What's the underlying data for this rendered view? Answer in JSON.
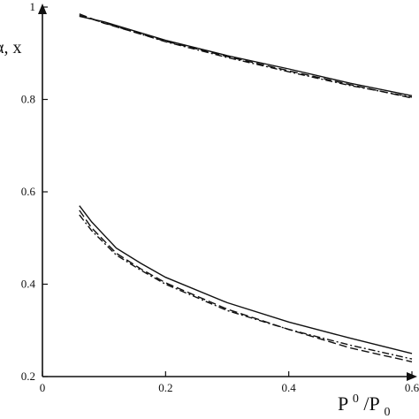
{
  "chart_data": {
    "type": "line",
    "title": "",
    "xlabel_main": "P",
    "xlabel_sup": "0",
    "xlabel_sep": "/P",
    "xlabel_sub": "0",
    "ylabel": "α, x",
    "xlim": [
      0,
      0.6
    ],
    "ylim": [
      0.2,
      1.0
    ],
    "x_ticks": [
      "0",
      "0.2",
      "0.4",
      "0.6"
    ],
    "y_ticks": [
      "0.2",
      "0.4",
      "0.6",
      "0.8",
      "1"
    ],
    "grid": false,
    "series": [
      {
        "style": "solid",
        "x": [
          0.06,
          0.1,
          0.2,
          0.3,
          0.4,
          0.5,
          0.6
        ],
        "y": [
          0.98,
          0.968,
          0.928,
          0.895,
          0.866,
          0.835,
          0.808
        ]
      },
      {
        "style": "dashed",
        "x": [
          0.06,
          0.1,
          0.2,
          0.3,
          0.4,
          0.5,
          0.6
        ],
        "y": [
          0.985,
          0.965,
          0.926,
          0.893,
          0.862,
          0.832,
          0.803
        ]
      },
      {
        "style": "dashdot",
        "x": [
          0.06,
          0.1,
          0.2,
          0.3,
          0.4,
          0.5,
          0.6
        ],
        "y": [
          0.982,
          0.966,
          0.925,
          0.891,
          0.86,
          0.83,
          0.805
        ]
      },
      {
        "style": "solid",
        "x": [
          0.06,
          0.08,
          0.12,
          0.16,
          0.2,
          0.3,
          0.4,
          0.5,
          0.6
        ],
        "y": [
          0.57,
          0.535,
          0.478,
          0.445,
          0.415,
          0.36,
          0.318,
          0.283,
          0.25
        ]
      },
      {
        "style": "dashed",
        "x": [
          0.06,
          0.08,
          0.12,
          0.16,
          0.2,
          0.3,
          0.4,
          0.5,
          0.6
        ],
        "y": [
          0.56,
          0.522,
          0.467,
          0.433,
          0.403,
          0.346,
          0.302,
          0.262,
          0.232
        ]
      },
      {
        "style": "dashdot",
        "x": [
          0.06,
          0.08,
          0.12,
          0.16,
          0.2,
          0.3,
          0.4,
          0.5,
          0.6
        ],
        "y": [
          0.55,
          0.516,
          0.463,
          0.43,
          0.4,
          0.343,
          0.302,
          0.268,
          0.238
        ]
      }
    ]
  }
}
